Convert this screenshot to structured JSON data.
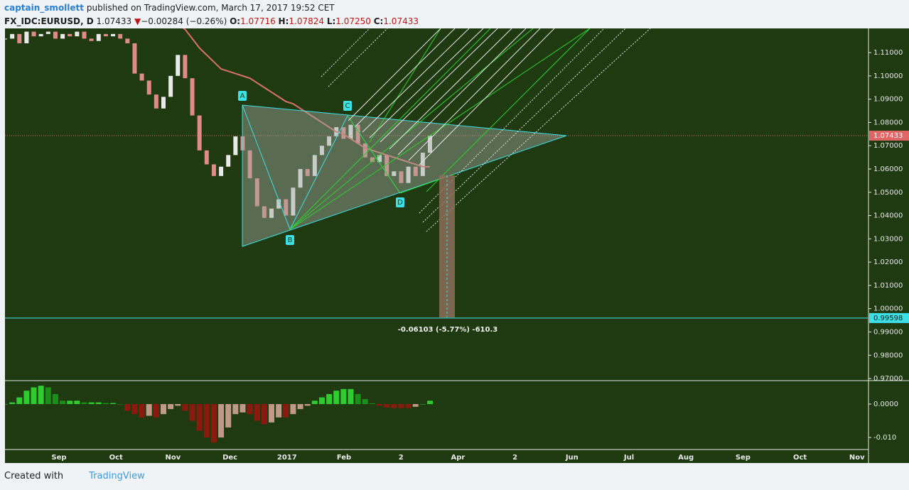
{
  "chart_data": {
    "type": "candlestick",
    "author": "captain_smollett",
    "published": "published on TradingView.com, March 17, 2017 19:52 CET",
    "symbol": "FX_IDC:EURUSD, D",
    "last": "1.07433",
    "change_arrow": "▼",
    "change": "−0.00284 (−0.26%)",
    "ohlc": [
      {
        "label": "O:",
        "value": "1.07716"
      },
      {
        "label": "H:",
        "value": "1.07824"
      },
      {
        "label": "L:",
        "value": "1.07250"
      },
      {
        "label": "C:",
        "value": "1.07433"
      }
    ],
    "series": [
      {
        "name": "EURUSD",
        "up_color": "#e9e9e9",
        "down_color": "#e08a8a",
        "values": [
          1.116,
          1.118,
          1.114,
          1.119,
          1.117,
          1.118,
          1.119,
          1.116,
          1.118,
          1.117,
          1.119,
          1.116,
          1.115,
          1.118,
          1.117,
          1.118,
          1.116,
          1.114,
          1.101,
          1.098,
          1.092,
          1.086,
          1.091,
          1.1,
          1.109,
          1.099,
          1.083,
          1.068,
          1.062,
          1.057,
          1.061,
          1.066,
          1.074,
          1.068,
          1.056,
          1.044,
          1.039,
          1.043,
          1.047,
          1.04,
          1.052,
          1.06,
          1.057,
          1.066,
          1.07,
          1.074,
          1.078,
          1.073,
          1.079,
          1.071,
          1.065,
          1.063,
          1.066,
          1.057,
          1.059,
          1.054,
          1.061,
          1.057,
          1.067,
          1.07433
        ]
      },
      {
        "name": "MA",
        "color": "#d9716b",
        "values": [
          1.124,
          1.124,
          1.124,
          1.124,
          1.123,
          1.123,
          1.123,
          1.123,
          1.123,
          1.123,
          1.123,
          1.122,
          1.122,
          1.122,
          1.122,
          1.122,
          1.122,
          1.121,
          1.121,
          1.121,
          1.121,
          1.122,
          1.122,
          1.123,
          1.122,
          1.12,
          1.116,
          1.112,
          1.109,
          1.106,
          1.103,
          1.102,
          1.101,
          1.1,
          1.099,
          1.097,
          1.095,
          1.093,
          1.091,
          1.089,
          1.088,
          1.086,
          1.084,
          1.082,
          1.08,
          1.078,
          1.076,
          1.075,
          1.073,
          1.071,
          1.069,
          1.068,
          1.067,
          1.066,
          1.065,
          1.064,
          1.063,
          1.062,
          1.061,
          1.061
        ]
      }
    ],
    "ylim": [
      0.9694,
      1.1204
    ],
    "yticks": [
      {
        "value": 1.11,
        "label": "1.11000"
      },
      {
        "value": 1.1,
        "label": "1.10000"
      },
      {
        "value": 1.09,
        "label": "1.09000"
      },
      {
        "value": 1.08,
        "label": "1.08000"
      },
      {
        "value": 1.07,
        "label": "1.07000"
      },
      {
        "value": 1.06,
        "label": "1.06000"
      },
      {
        "value": 1.05,
        "label": "1.05000"
      },
      {
        "value": 1.04,
        "label": "1.04000"
      },
      {
        "value": 1.03,
        "label": "1.03000"
      },
      {
        "value": 1.02,
        "label": "1.02000"
      },
      {
        "value": 1.01,
        "label": "1.01000"
      },
      {
        "value": 1.0,
        "label": "1.00000"
      },
      {
        "value": 0.99,
        "label": "0.99000"
      },
      {
        "value": 0.98,
        "label": "0.98000"
      },
      {
        "value": 0.97,
        "label": "0.97000"
      }
    ],
    "price_lines": [
      {
        "value": 1.07433,
        "color": "#e06666",
        "style": "dotted"
      },
      {
        "value": 0.99598,
        "color": "#3ee0e8",
        "style": "solid"
      }
    ],
    "measure_label": "-0.06103 (-5.77%) -610.3",
    "pattern_points": [
      "A",
      "B",
      "C",
      "D"
    ],
    "oscillator": {
      "values": [
        0.0,
        0.0005,
        0.002,
        0.004,
        0.005,
        0.0055,
        0.005,
        0.003,
        0.001,
        0.001,
        0.001,
        0.0005,
        0.0005,
        0.0005,
        0.0003,
        0.0003,
        0.0,
        -0.002,
        -0.003,
        -0.004,
        -0.0035,
        -0.004,
        -0.003,
        -0.0015,
        -0.0005,
        -0.002,
        -0.005,
        -0.008,
        -0.01,
        -0.0115,
        -0.01,
        -0.007,
        -0.003,
        -0.0025,
        -0.003,
        -0.005,
        -0.006,
        -0.0055,
        -0.004,
        -0.004,
        -0.003,
        -0.0015,
        -0.0005,
        0.001,
        0.002,
        0.003,
        0.004,
        0.0045,
        0.0045,
        0.003,
        0.0015,
        0.0002,
        -0.0005,
        -0.001,
        -0.0012,
        -0.0012,
        -0.0012,
        -0.0008,
        0.0,
        0.001
      ],
      "colors": {
        "pos_up": "#2ecc2e",
        "pos_down": "#1a8f1a",
        "neg_down": "#8b1a0e",
        "neg_up": "#c09a88"
      },
      "ylim": [
        -0.0136,
        0.0068
      ],
      "yticks": [
        {
          "value": 0,
          "label": "0.0000"
        },
        {
          "value": -0.01,
          "label": "-0.010"
        }
      ]
    },
    "time_labels": [
      "Sep",
      "Oct",
      "Nov",
      "Dec",
      "2017",
      "Feb",
      "2",
      "Apr",
      "2",
      "Jun",
      "Jul",
      "Aug",
      "Sep",
      "Oct",
      "Nov"
    ],
    "footer": {
      "prefix": "Created with",
      "brand": "TradingView"
    }
  }
}
